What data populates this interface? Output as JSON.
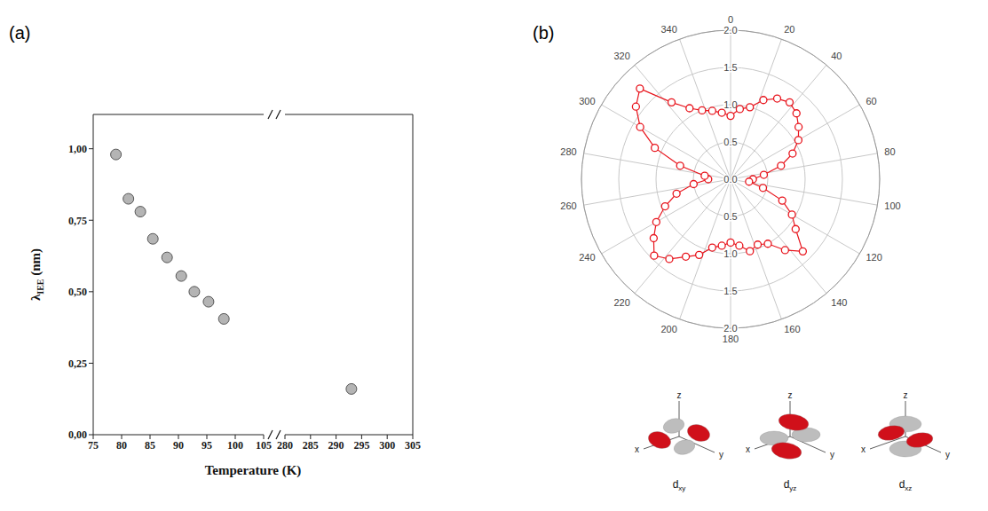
{
  "chart_data": [
    {
      "type": "scatter",
      "panel_label": "(a)",
      "x_label": "Temperature (K)",
      "y_label": {
        "text": "λ",
        "subscript": "IEE",
        "suffix": " (nm)"
      },
      "x": [
        79,
        81.2,
        83.3,
        85.5,
        88,
        90.5,
        92.8,
        95.3,
        98,
        293
      ],
      "values": [
        0.98,
        0.825,
        0.78,
        0.685,
        0.62,
        0.555,
        0.5,
        0.465,
        0.405,
        0.16
      ],
      "color": "#b4b4b4",
      "marker": "circle",
      "grid": false,
      "xlim": [
        75,
        305
      ],
      "axis_break": [
        105,
        280
      ],
      "xticks": [
        75,
        80,
        85,
        90,
        95,
        100,
        105,
        280,
        285,
        290,
        295,
        300,
        305
      ],
      "ylim": [
        0,
        1.12
      ],
      "yticks": [
        {
          "value": 0,
          "label": "0,00"
        },
        {
          "value": 0.25,
          "label": "0,25"
        },
        {
          "value": 0.5,
          "label": "0,50"
        },
        {
          "value": 0.75,
          "label": "0,75"
        },
        {
          "value": 1,
          "label": "1,00"
        }
      ]
    },
    {
      "type": "polar",
      "panel_label": "(b)",
      "x": [
        0,
        7.5,
        15,
        22.5,
        30,
        37.5,
        45,
        52.5,
        60,
        67.5,
        75,
        82.5,
        90,
        97.5,
        105,
        112.5,
        120,
        127.5,
        135,
        142.5,
        150,
        157.5,
        165,
        172.5,
        180,
        187.5,
        195,
        202.5,
        210,
        217.5,
        225,
        232.5,
        240,
        247.5,
        255,
        262.5,
        270,
        277.5,
        285,
        292.5,
        300,
        307.5,
        315,
        322.5,
        330,
        337.5,
        345,
        352.5
      ],
      "values": [
        0.85,
        0.95,
        1.0,
        1.15,
        1.25,
        1.3,
        1.25,
        1.15,
        1.05,
        0.9,
        0.7,
        0.45,
        0.3,
        0.25,
        0.45,
        0.75,
        0.95,
        1.1,
        1.37,
        1.2,
        1.0,
        0.95,
        1.0,
        0.9,
        0.85,
        0.9,
        0.95,
        1.1,
        1.2,
        1.35,
        1.45,
        1.3,
        1.15,
        0.95,
        0.75,
        0.5,
        0.3,
        0.35,
        0.7,
        1.1,
        1.4,
        1.6,
        1.72,
        1.3,
        1.1,
        1.0,
        0.95,
        0.9
      ],
      "color": "#e8141c",
      "marker": "circle",
      "line_style": "solid",
      "grid": true,
      "xlim": [
        0,
        360
      ],
      "xticks": [
        0,
        20,
        40,
        60,
        80,
        100,
        120,
        140,
        160,
        180,
        200,
        220,
        240,
        260,
        280,
        300,
        320,
        340
      ],
      "ylim": [
        0,
        2
      ],
      "yticks": [
        {
          "value": 0,
          "label": "0.0"
        },
        0.5,
        {
          "value": 1,
          "label": "1.0"
        },
        1.5,
        {
          "value": 2,
          "label": "2.0"
        }
      ]
    }
  ],
  "orbitals": {
    "axis_labels": {
      "x": "x",
      "y": "y",
      "z": "z"
    },
    "items": [
      {
        "name": "d",
        "subscript": "xy"
      },
      {
        "name": "d",
        "subscript": "yz"
      },
      {
        "name": "d",
        "subscript": "xz"
      }
    ]
  }
}
